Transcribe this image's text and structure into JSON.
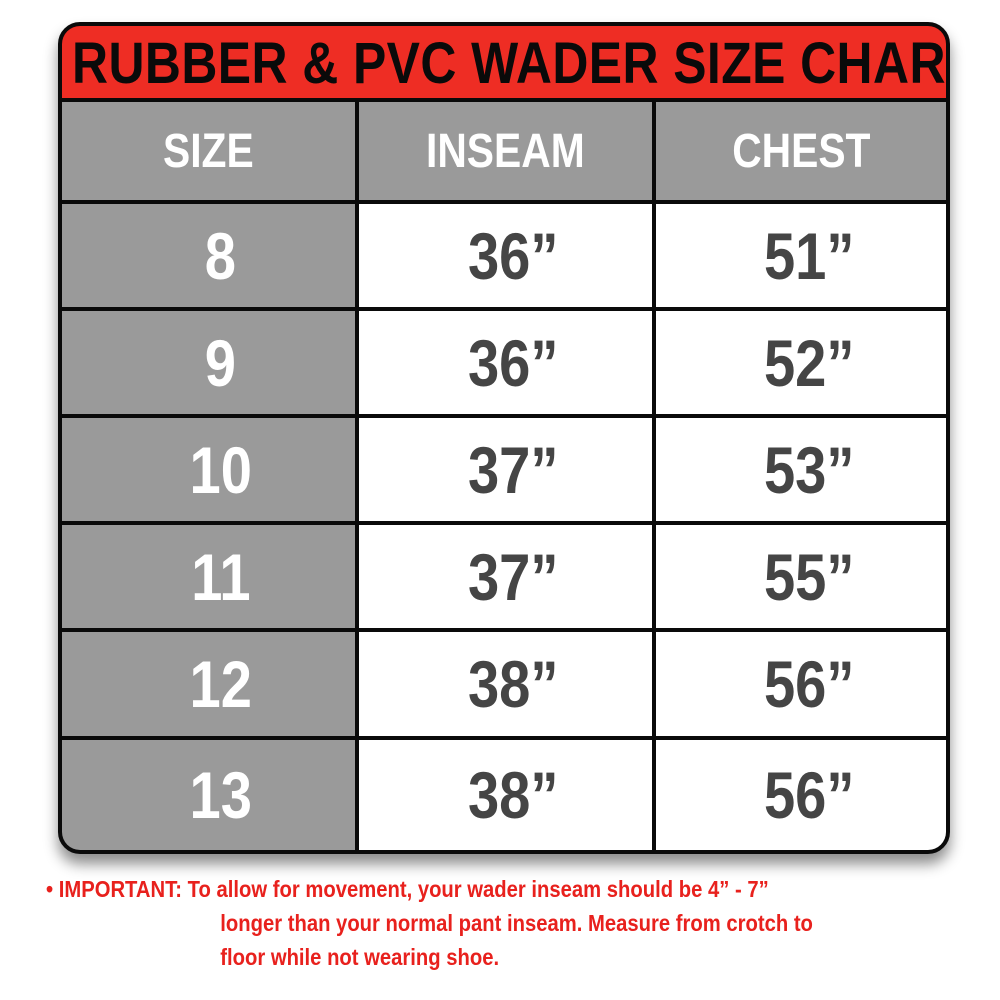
{
  "title": "RUBBER & PVC WADER SIZE CHART",
  "colors": {
    "title_bg": "#ee2d24",
    "header_bg": "#9a9a9a",
    "note_text": "#e8211d",
    "value_text": "#454545"
  },
  "chart_data": {
    "type": "table",
    "title": "RUBBER & PVC WADER SIZE CHART",
    "columns": [
      "SIZE",
      "INSEAM",
      "CHEST"
    ],
    "rows": [
      [
        "8",
        "36”",
        "51”"
      ],
      [
        "9",
        "36”",
        "52”"
      ],
      [
        "10",
        "37”",
        "53”"
      ],
      [
        "11",
        "37”",
        "55”"
      ],
      [
        "12",
        "38”",
        "56”"
      ],
      [
        "13",
        "38”",
        "56”"
      ]
    ]
  },
  "note": {
    "bullet": "•",
    "label": "IMPORTANT:",
    "lines": [
      "To allow for movement, your wader inseam should be 4” - 7”",
      "longer than your normal pant inseam. Measure from crotch to",
      "floor while not wearing shoe."
    ]
  }
}
